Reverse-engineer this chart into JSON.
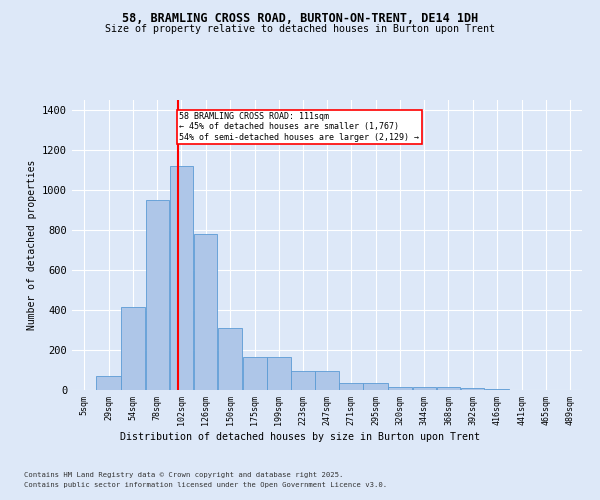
{
  "title": "58, BRAMLING CROSS ROAD, BURTON-ON-TRENT, DE14 1DH",
  "subtitle": "Size of property relative to detached houses in Burton upon Trent",
  "xlabel": "Distribution of detached houses by size in Burton upon Trent",
  "ylabel": "Number of detached properties",
  "footnote1": "Contains HM Land Registry data © Crown copyright and database right 2025.",
  "footnote2": "Contains public sector information licensed under the Open Government Licence v3.0.",
  "annotation_line1": "58 BRAMLING CROSS ROAD: 111sqm",
  "annotation_line2": "← 45% of detached houses are smaller (1,767)",
  "annotation_line3": "54% of semi-detached houses are larger (2,129) →",
  "bar_color": "#aec6e8",
  "bar_edge_color": "#5b9bd5",
  "background_color": "#dde8f8",
  "red_line_x": 111,
  "categories": [
    "5sqm",
    "29sqm",
    "54sqm",
    "78sqm",
    "102sqm",
    "126sqm",
    "150sqm",
    "175sqm",
    "199sqm",
    "223sqm",
    "247sqm",
    "271sqm",
    "295sqm",
    "320sqm",
    "344sqm",
    "368sqm",
    "392sqm",
    "416sqm",
    "441sqm",
    "465sqm",
    "489sqm"
  ],
  "bin_edges": [
    5,
    29,
    54,
    78,
    102,
    126,
    150,
    175,
    199,
    223,
    247,
    271,
    295,
    320,
    344,
    368,
    392,
    416,
    441,
    465,
    489,
    513
  ],
  "values": [
    0,
    70,
    415,
    950,
    1120,
    780,
    310,
    165,
    165,
    95,
    95,
    35,
    35,
    15,
    15,
    15,
    10,
    5,
    0,
    0,
    0
  ],
  "ylim": [
    0,
    1450
  ],
  "yticks": [
    0,
    200,
    400,
    600,
    800,
    1000,
    1200,
    1400
  ]
}
